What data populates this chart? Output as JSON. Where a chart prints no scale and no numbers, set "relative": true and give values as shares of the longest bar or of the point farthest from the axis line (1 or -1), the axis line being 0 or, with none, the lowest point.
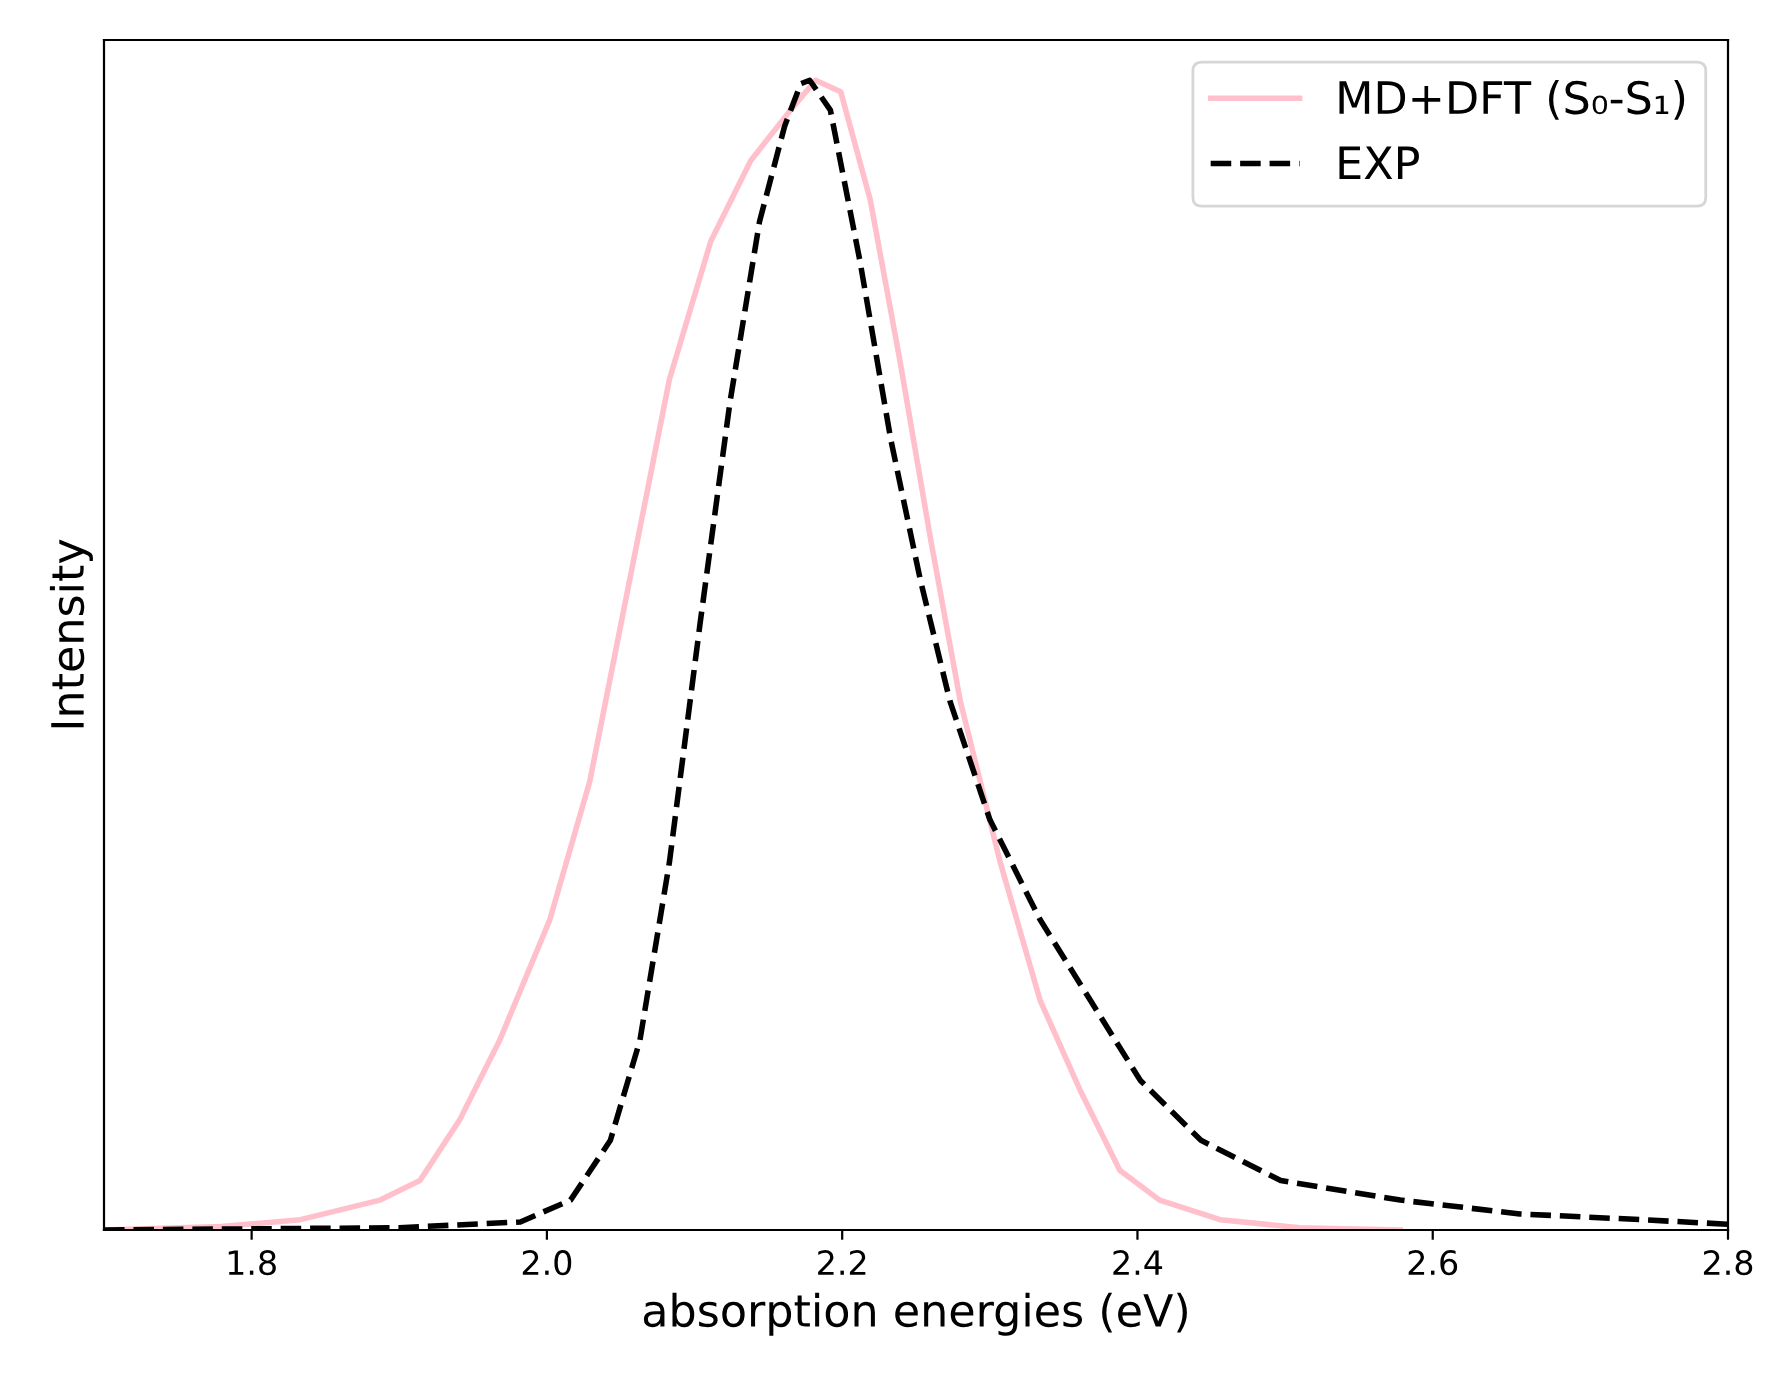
{
  "chart_data": {
    "type": "line",
    "xlabel": "absorption energies (eV)",
    "ylabel": "Intensity",
    "relative": true,
    "xlim": [
      1.7,
      2.8
    ],
    "xticks": [
      {
        "value": 1.8,
        "label": "1.8"
      },
      {
        "value": 2.0,
        "label": "2.0"
      },
      {
        "value": 2.2,
        "label": "2.2"
      },
      {
        "value": 2.4,
        "label": "2.4"
      },
      {
        "value": 2.6,
        "label": "2.6"
      },
      {
        "value": 2.8,
        "label": "2.8"
      }
    ],
    "tick_labels": "x",
    "legend": "top right",
    "grid": false,
    "series": [
      {
        "name": "MD+DFT (S₀-S₁)",
        "color": "#ffc0cb",
        "line_style": "solid",
        "x": [
          1.7,
          1.779,
          1.833,
          1.887,
          1.914,
          1.941,
          1.968,
          2.002,
          2.029,
          2.056,
          2.083,
          2.111,
          2.138,
          2.165,
          2.182,
          2.199,
          2.219,
          2.239,
          2.26,
          2.28,
          2.307,
          2.334,
          2.361,
          2.388,
          2.415,
          2.456,
          2.51,
          2.578
        ],
        "values": [
          0,
          0.003,
          0.009,
          0.026,
          0.043,
          0.096,
          0.165,
          0.27,
          0.39,
          0.565,
          0.74,
          0.86,
          0.93,
          0.974,
          1.0,
          0.99,
          0.896,
          0.757,
          0.6,
          0.46,
          0.32,
          0.2,
          0.122,
          0.052,
          0.026,
          0.009,
          0.002,
          0
        ]
      },
      {
        "name": "EXP",
        "color": "#000000",
        "line_style": "dashed",
        "x": [
          1.7,
          1.9,
          1.982,
          2.016,
          2.043,
          2.063,
          2.083,
          2.104,
          2.124,
          2.144,
          2.161,
          2.172,
          2.178,
          2.192,
          2.212,
          2.233,
          2.253,
          2.273,
          2.3,
          2.334,
          2.368,
          2.402,
          2.443,
          2.497,
          2.578,
          2.659,
          2.741,
          2.8
        ],
        "values": [
          0,
          0.002,
          0.007,
          0.026,
          0.078,
          0.165,
          0.32,
          0.53,
          0.72,
          0.877,
          0.96,
          0.997,
          1.0,
          0.974,
          0.843,
          0.687,
          0.565,
          0.46,
          0.357,
          0.27,
          0.2,
          0.13,
          0.078,
          0.043,
          0.026,
          0.014,
          0.009,
          0.005
        ]
      }
    ]
  }
}
